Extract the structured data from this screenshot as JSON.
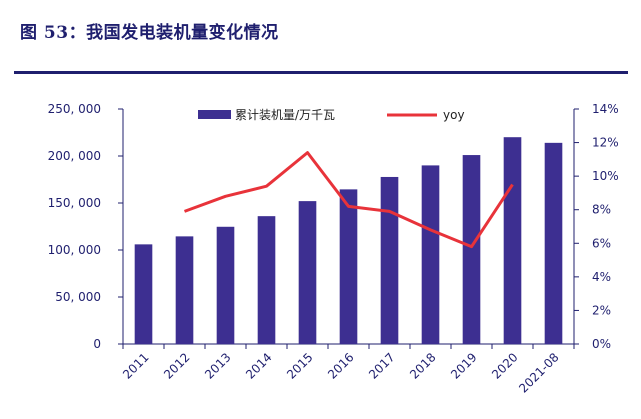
{
  "header": {
    "title": "图 53：我国发电装机量变化情况"
  },
  "colors": {
    "bar": "#3d2f91",
    "line": "#e8333a",
    "axis": "#1f1f6e"
  },
  "chart_data": {
    "type": "bar",
    "categories": [
      "2011",
      "2012",
      "2013",
      "2014",
      "2015",
      "2016",
      "2017",
      "2018",
      "2019",
      "2020",
      "2021-08"
    ],
    "series": [
      {
        "name": "累计装机量/万千瓦",
        "type": "bar",
        "axis": "left",
        "values": [
          106000,
          114500,
          124700,
          136000,
          152000,
          164500,
          177700,
          190000,
          201000,
          220000,
          214000
        ]
      },
      {
        "name": "yoy",
        "type": "line",
        "axis": "right",
        "values": [
          null,
          7.9,
          8.8,
          9.4,
          11.4,
          8.2,
          7.9,
          6.8,
          5.8,
          9.5,
          null
        ]
      }
    ],
    "y_left": {
      "min": 0,
      "max": 250000,
      "ticks": [
        0,
        50000,
        100000,
        150000,
        200000,
        250000
      ],
      "tick_labels": [
        "0",
        "50, 000",
        "100, 000",
        "150, 000",
        "200, 000",
        "250, 000"
      ]
    },
    "y_right": {
      "min": 0,
      "max": 14,
      "ticks": [
        0,
        2,
        4,
        6,
        8,
        10,
        12,
        14
      ],
      "tick_labels": [
        "0%",
        "2%",
        "4%",
        "6%",
        "8%",
        "10%",
        "12%",
        "14%"
      ]
    },
    "x_tick_labels": [
      "2011",
      "2012",
      "2013",
      "2014",
      "2015",
      "2016",
      "2017",
      "2018",
      "2019",
      "2020",
      "2021-08"
    ],
    "legend": [
      {
        "label": "累计装机量/万千瓦",
        "kind": "bar"
      },
      {
        "label": "yoy",
        "kind": "line"
      }
    ],
    "legend_position": "top-center",
    "grid": false
  }
}
